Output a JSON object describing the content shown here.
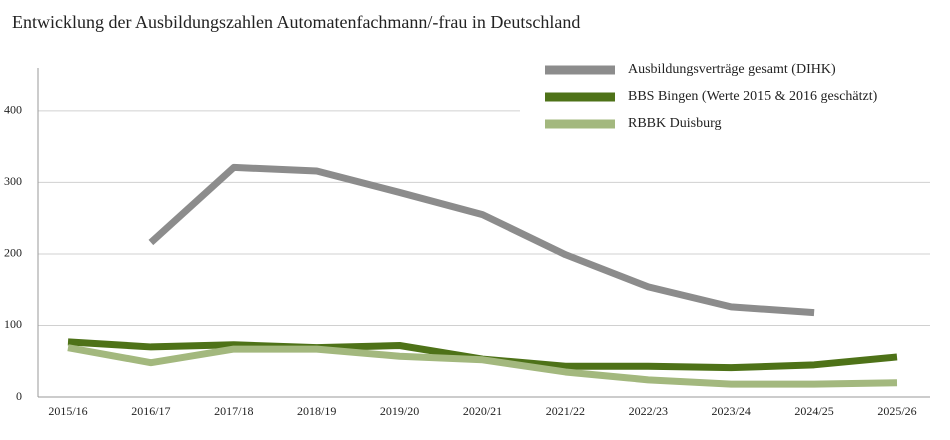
{
  "chart_data": {
    "type": "line",
    "title": "Entwicklung der Ausbildungszahlen Automatenfachmann/-frau in Deutschland",
    "categories": [
      "2015/16",
      "2016/17",
      "2017/18",
      "2018/19",
      "2019/20",
      "2020/21",
      "2021/22",
      "2022/23",
      "2023/24",
      "2024/25",
      "2025/26"
    ],
    "series": [
      {
        "name": "Ausbildungsverträge gesamt (DIHK)",
        "color": "#8c8c8c",
        "values": [
          null,
          216,
          321,
          316,
          286,
          255,
          199,
          154,
          126,
          118,
          null
        ]
      },
      {
        "name": "BBS Bingen (Werte 2015 & 2016 geschätzt)",
        "color": "#4e7218",
        "values": [
          77,
          70,
          73,
          69,
          72,
          53,
          43,
          43,
          41,
          45,
          56
        ]
      },
      {
        "name": "RBBK Duisburg",
        "color": "#a3b87e",
        "values": [
          69,
          48,
          67,
          67,
          57,
          52,
          35,
          24,
          18,
          18,
          20
        ]
      }
    ],
    "ylim": [
      0,
      460
    ],
    "yticks": [
      0,
      100,
      200,
      300,
      400
    ],
    "grid": true,
    "legend": "top-right"
  }
}
